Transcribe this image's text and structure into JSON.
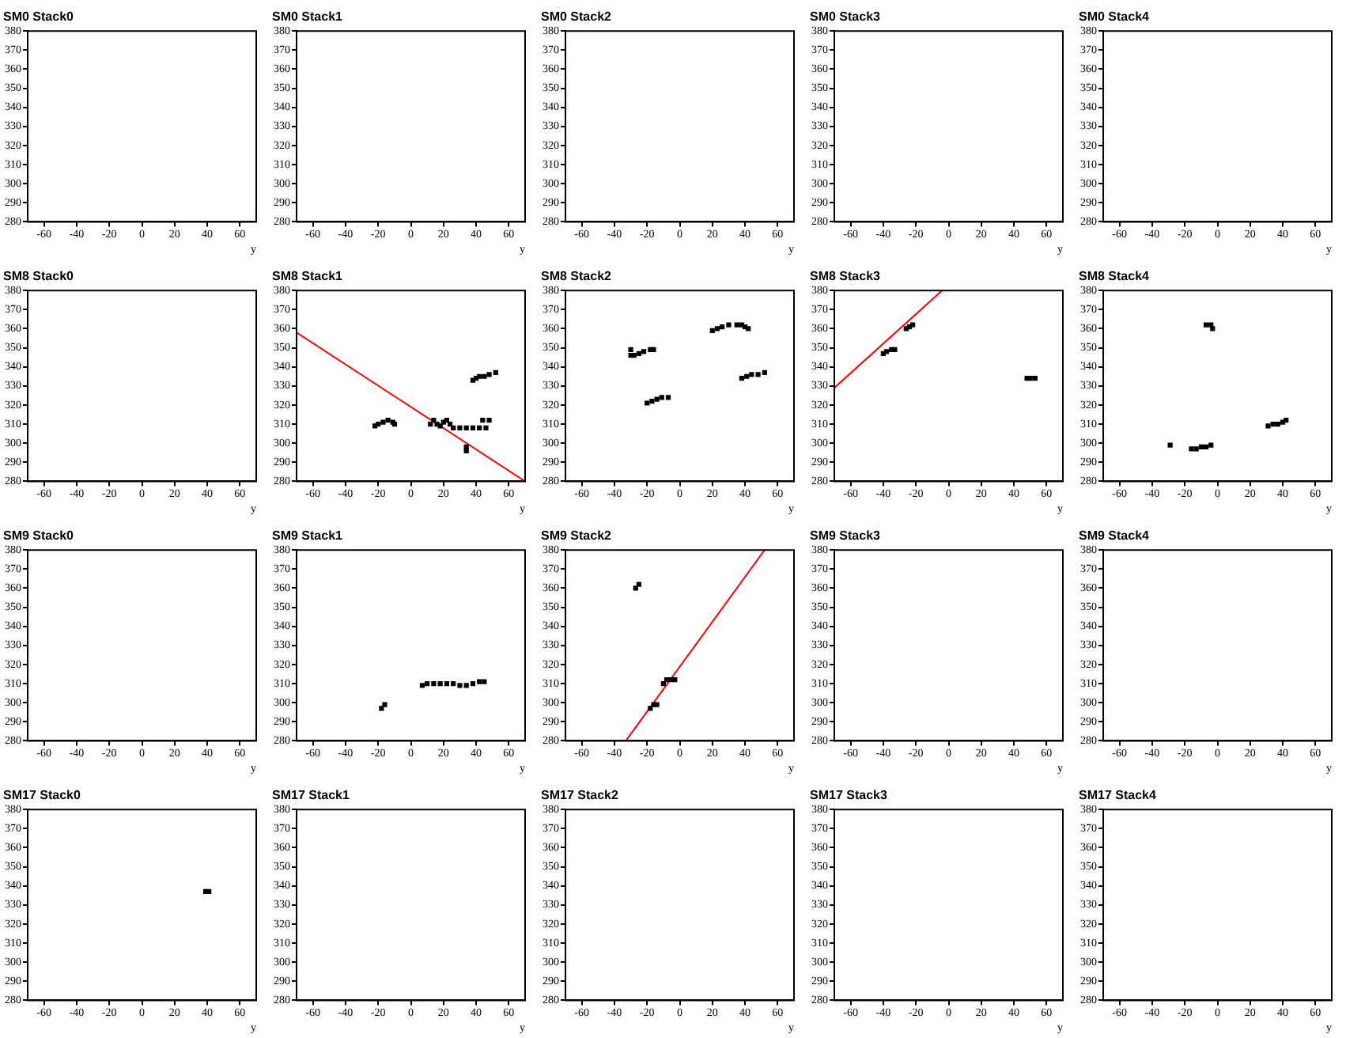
{
  "chart_data": [
    {
      "type": "scatter",
      "title": "SM0 Stack0",
      "xlabel": "y",
      "xlim": [
        -70,
        70
      ],
      "ylim": [
        280,
        380
      ],
      "xticks": [
        -60,
        -40,
        -20,
        0,
        20,
        40,
        60
      ],
      "yticks": [
        280,
        290,
        300,
        310,
        320,
        330,
        340,
        350,
        360,
        370,
        380
      ]
    },
    {
      "type": "scatter",
      "title": "SM0 Stack1",
      "xlabel": "y",
      "xlim": [
        -70,
        70
      ],
      "ylim": [
        280,
        380
      ],
      "xticks": [
        -60,
        -40,
        -20,
        0,
        20,
        40,
        60
      ],
      "yticks": [
        280,
        290,
        300,
        310,
        320,
        330,
        340,
        350,
        360,
        370,
        380
      ]
    },
    {
      "type": "scatter",
      "title": "SM0 Stack2",
      "xlabel": "y",
      "xlim": [
        -70,
        70
      ],
      "ylim": [
        280,
        380
      ],
      "xticks": [
        -60,
        -40,
        -20,
        0,
        20,
        40,
        60
      ],
      "yticks": [
        280,
        290,
        300,
        310,
        320,
        330,
        340,
        350,
        360,
        370,
        380
      ]
    },
    {
      "type": "scatter",
      "title": "SM0 Stack3",
      "xlabel": "y",
      "xlim": [
        -70,
        70
      ],
      "ylim": [
        280,
        380
      ],
      "xticks": [
        -60,
        -40,
        -20,
        0,
        20,
        40,
        60
      ],
      "yticks": [
        280,
        290,
        300,
        310,
        320,
        330,
        340,
        350,
        360,
        370,
        380
      ]
    },
    {
      "type": "scatter",
      "title": "SM0 Stack4",
      "xlabel": "y",
      "xlim": [
        -70,
        70
      ],
      "ylim": [
        280,
        380
      ],
      "xticks": [
        -60,
        -40,
        -20,
        0,
        20,
        40,
        60
      ],
      "yticks": [
        280,
        290,
        300,
        310,
        320,
        330,
        340,
        350,
        360,
        370,
        380
      ]
    },
    {
      "type": "scatter",
      "title": "SM8 Stack0",
      "xlabel": "y",
      "xlim": [
        -70,
        70
      ],
      "ylim": [
        280,
        380
      ],
      "xticks": [
        -60,
        -40,
        -20,
        0,
        20,
        40,
        60
      ],
      "yticks": [
        280,
        290,
        300,
        310,
        320,
        330,
        340,
        350,
        360,
        370,
        380
      ]
    },
    {
      "type": "scatter",
      "title": "SM8 Stack1",
      "xlabel": "y",
      "xlim": [
        -70,
        70
      ],
      "ylim": [
        280,
        380
      ],
      "xticks": [
        -60,
        -40,
        -20,
        0,
        20,
        40,
        60
      ],
      "yticks": [
        280,
        290,
        300,
        310,
        320,
        330,
        340,
        350,
        360,
        370,
        380
      ],
      "marker": "square",
      "series": [
        {
          "type": "scatter",
          "color": "#000000",
          "x": [
            -22,
            -20,
            -17,
            -14,
            -11,
            -10,
            12,
            14,
            16,
            18,
            20,
            22,
            24,
            26,
            30,
            34,
            38,
            42,
            46,
            44,
            48,
            34,
            34,
            38,
            40,
            42,
            45,
            48,
            52
          ],
          "values": [
            309,
            310,
            311,
            312,
            311,
            310,
            310,
            312,
            310,
            309,
            311,
            312,
            310,
            308,
            308,
            308,
            308,
            308,
            308,
            312,
            312,
            296,
            298,
            333,
            334,
            335,
            335,
            336,
            337
          ]
        },
        {
          "type": "line",
          "color": "#ff0000",
          "marker": "none",
          "x": [
            -70,
            70
          ],
          "values": [
            358,
            280
          ]
        }
      ]
    },
    {
      "type": "scatter",
      "title": "SM8 Stack2",
      "xlabel": "y",
      "xlim": [
        -70,
        70
      ],
      "ylim": [
        280,
        380
      ],
      "xticks": [
        -60,
        -40,
        -20,
        0,
        20,
        40,
        60
      ],
      "yticks": [
        280,
        290,
        300,
        310,
        320,
        330,
        340,
        350,
        360,
        370,
        380
      ],
      "marker": "square",
      "series": [
        {
          "type": "scatter",
          "color": "#000000",
          "x": [
            -30,
            -30,
            -28,
            -25,
            -22,
            -18,
            -16,
            -20,
            -17,
            -14,
            -11,
            -7,
            20,
            23,
            26,
            30,
            35,
            38,
            40,
            42,
            38,
            41,
            44,
            48,
            52
          ],
          "values": [
            346,
            349,
            346,
            347,
            348,
            349,
            349,
            321,
            322,
            323,
            324,
            324,
            359,
            360,
            361,
            362,
            362,
            362,
            361,
            360,
            334,
            335,
            336,
            336,
            337
          ]
        }
      ]
    },
    {
      "type": "scatter",
      "title": "SM8 Stack3",
      "xlabel": "y",
      "xlim": [
        -70,
        70
      ],
      "ylim": [
        280,
        380
      ],
      "xticks": [
        -60,
        -40,
        -20,
        0,
        20,
        40,
        60
      ],
      "yticks": [
        280,
        290,
        300,
        310,
        320,
        330,
        340,
        350,
        360,
        370,
        380
      ],
      "marker": "square",
      "series": [
        {
          "type": "scatter",
          "color": "#000000",
          "x": [
            -40,
            -38,
            -35,
            -33,
            -26,
            -24,
            -22,
            48,
            50,
            53
          ],
          "values": [
            347,
            348,
            349,
            349,
            360,
            361,
            362,
            334,
            334,
            334
          ]
        },
        {
          "type": "line",
          "color": "#ff0000",
          "marker": "none",
          "x": [
            -70,
            -4
          ],
          "values": [
            329,
            380
          ]
        }
      ]
    },
    {
      "type": "scatter",
      "title": "SM8 Stack4",
      "xlabel": "y",
      "xlim": [
        -70,
        70
      ],
      "ylim": [
        280,
        380
      ],
      "xticks": [
        -60,
        -40,
        -20,
        0,
        20,
        40,
        60
      ],
      "yticks": [
        280,
        290,
        300,
        310,
        320,
        330,
        340,
        350,
        360,
        370,
        380
      ],
      "marker": "square",
      "series": [
        {
          "type": "scatter",
          "color": "#000000",
          "x": [
            -7,
            -4,
            -3,
            -29,
            -16,
            -13,
            -10,
            -7,
            -4,
            31,
            34,
            37,
            40,
            42
          ],
          "values": [
            362,
            362,
            360,
            299,
            297,
            297,
            298,
            298,
            299,
            309,
            310,
            310,
            311,
            312
          ]
        }
      ]
    },
    {
      "type": "scatter",
      "title": "SM9 Stack0",
      "xlabel": "y",
      "xlim": [
        -70,
        70
      ],
      "ylim": [
        280,
        380
      ],
      "xticks": [
        -60,
        -40,
        -20,
        0,
        20,
        40,
        60
      ],
      "yticks": [
        280,
        290,
        300,
        310,
        320,
        330,
        340,
        350,
        360,
        370,
        380
      ]
    },
    {
      "type": "scatter",
      "title": "SM9 Stack1",
      "xlabel": "y",
      "xlim": [
        -70,
        70
      ],
      "ylim": [
        280,
        380
      ],
      "xticks": [
        -60,
        -40,
        -20,
        0,
        20,
        40,
        60
      ],
      "yticks": [
        280,
        290,
        300,
        310,
        320,
        330,
        340,
        350,
        360,
        370,
        380
      ],
      "marker": "square",
      "series": [
        {
          "type": "scatter",
          "color": "#000000",
          "x": [
            -18,
            -16,
            7,
            10,
            14,
            18,
            22,
            26,
            30,
            34,
            38,
            42,
            45
          ],
          "values": [
            297,
            299,
            309,
            310,
            310,
            310,
            310,
            310,
            309,
            309,
            310,
            311,
            311
          ]
        }
      ]
    },
    {
      "type": "scatter",
      "title": "SM9 Stack2",
      "xlabel": "y",
      "xlim": [
        -70,
        70
      ],
      "ylim": [
        280,
        380
      ],
      "xticks": [
        -60,
        -40,
        -20,
        0,
        20,
        40,
        60
      ],
      "yticks": [
        280,
        290,
        300,
        310,
        320,
        330,
        340,
        350,
        360,
        370,
        380
      ],
      "marker": "square",
      "series": [
        {
          "type": "scatter",
          "color": "#000000",
          "x": [
            -27,
            -25,
            -18,
            -16,
            -14,
            -10,
            -8,
            -5,
            -3
          ],
          "values": [
            360,
            362,
            297,
            299,
            299,
            310,
            312,
            312,
            312
          ]
        },
        {
          "type": "line",
          "color": "#ff0000",
          "marker": "none",
          "x": [
            -33,
            52
          ],
          "values": [
            280,
            380
          ]
        }
      ]
    },
    {
      "type": "scatter",
      "title": "SM9 Stack3",
      "xlabel": "y",
      "xlim": [
        -70,
        70
      ],
      "ylim": [
        280,
        380
      ],
      "xticks": [
        -60,
        -40,
        -20,
        0,
        20,
        40,
        60
      ],
      "yticks": [
        280,
        290,
        300,
        310,
        320,
        330,
        340,
        350,
        360,
        370,
        380
      ]
    },
    {
      "type": "scatter",
      "title": "SM9 Stack4",
      "xlabel": "y",
      "xlim": [
        -70,
        70
      ],
      "ylim": [
        280,
        380
      ],
      "xticks": [
        -60,
        -40,
        -20,
        0,
        20,
        40,
        60
      ],
      "yticks": [
        280,
        290,
        300,
        310,
        320,
        330,
        340,
        350,
        360,
        370,
        380
      ]
    },
    {
      "type": "scatter",
      "title": "SM17 Stack0",
      "xlabel": "y",
      "xlim": [
        -70,
        70
      ],
      "ylim": [
        280,
        380
      ],
      "xticks": [
        -60,
        -40,
        -20,
        0,
        20,
        40,
        60
      ],
      "yticks": [
        280,
        290,
        300,
        310,
        320,
        330,
        340,
        350,
        360,
        370,
        380
      ],
      "marker": "square",
      "series": [
        {
          "type": "scatter",
          "color": "#000000",
          "x": [
            39,
            41
          ],
          "values": [
            337,
            337
          ]
        }
      ]
    },
    {
      "type": "scatter",
      "title": "SM17 Stack1",
      "xlabel": "y",
      "xlim": [
        -70,
        70
      ],
      "ylim": [
        280,
        380
      ],
      "xticks": [
        -60,
        -40,
        -20,
        0,
        20,
        40,
        60
      ],
      "yticks": [
        280,
        290,
        300,
        310,
        320,
        330,
        340,
        350,
        360,
        370,
        380
      ]
    },
    {
      "type": "scatter",
      "title": "SM17 Stack2",
      "xlabel": "y",
      "xlim": [
        -70,
        70
      ],
      "ylim": [
        280,
        380
      ],
      "xticks": [
        -60,
        -40,
        -20,
        0,
        20,
        40,
        60
      ],
      "yticks": [
        280,
        290,
        300,
        310,
        320,
        330,
        340,
        350,
        360,
        370,
        380
      ]
    },
    {
      "type": "scatter",
      "title": "SM17 Stack3",
      "xlabel": "y",
      "xlim": [
        -70,
        70
      ],
      "ylim": [
        280,
        380
      ],
      "xticks": [
        -60,
        -40,
        -20,
        0,
        20,
        40,
        60
      ],
      "yticks": [
        280,
        290,
        300,
        310,
        320,
        330,
        340,
        350,
        360,
        370,
        380
      ]
    },
    {
      "type": "scatter",
      "title": "SM17 Stack4",
      "xlabel": "y",
      "xlim": [
        -70,
        70
      ],
      "ylim": [
        280,
        380
      ],
      "xticks": [
        -60,
        -40,
        -20,
        0,
        20,
        40,
        60
      ],
      "yticks": [
        280,
        290,
        300,
        310,
        320,
        330,
        340,
        350,
        360,
        370,
        380
      ]
    }
  ]
}
